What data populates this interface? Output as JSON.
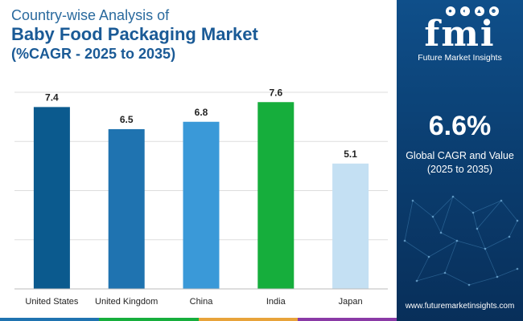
{
  "header": {
    "line1": "Country-wise Analysis of",
    "line2": "Baby Food Packaging Market",
    "line3": "(%CAGR - 2025 to 2035)"
  },
  "chart_data": {
    "type": "bar",
    "categories": [
      "United States",
      "United Kingdom",
      "China",
      "India",
      "Japan"
    ],
    "values": [
      7.4,
      6.5,
      6.8,
      7.6,
      5.1
    ],
    "value_labels": [
      "7.4",
      "6.5",
      "6.8",
      "7.6",
      "5.1"
    ],
    "colors": [
      "#0b5a8e",
      "#1f73b0",
      "#3a99d8",
      "#16ae3c",
      "#c4e0f3"
    ],
    "ylim": [
      0,
      8
    ],
    "grid": true,
    "title": "Country-wise Analysis of Baby Food Packaging Market (%CAGR - 2025 to 2035)",
    "xlabel": "",
    "ylabel": ""
  },
  "brand": {
    "logo_text": "fmi",
    "company": "Future Market Insights",
    "website": "www.futuremarketinsights.com"
  },
  "stat": {
    "value": "6.6%",
    "label_line1": "Global CAGR and Value",
    "label_line2": "(2025 to 2035)"
  },
  "footer_colors": [
    "#1f73b0",
    "#16ae3c",
    "#e8a33a",
    "#8a3aa6"
  ]
}
